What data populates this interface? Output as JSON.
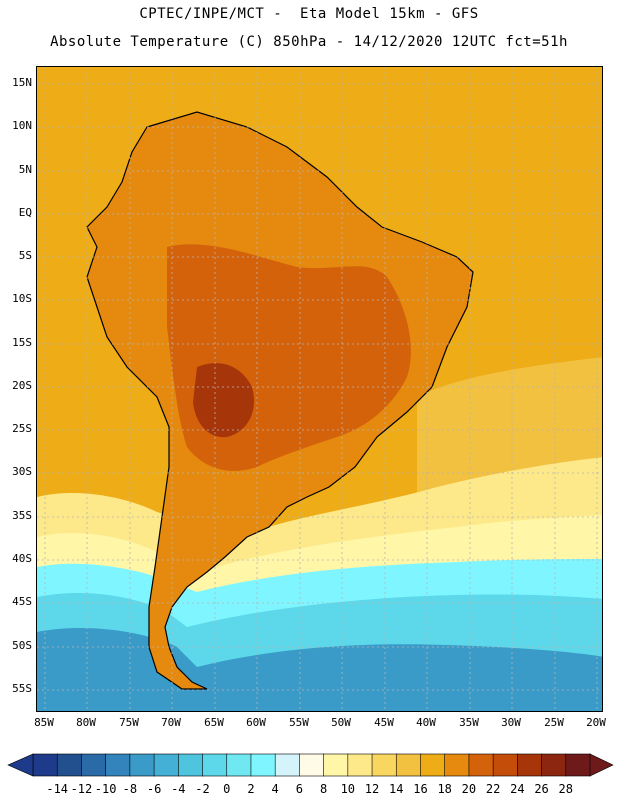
{
  "header": {
    "line1": "CPTEC/INPE/MCT -  Eta Model 15km - GFS",
    "line2": "Absolute Temperature (C) 850hPa - 14/12/2020 12UTC fct=51h"
  },
  "lat_labels": [
    "15N",
    "10N",
    "5N",
    "EQ",
    "5S",
    "10S",
    "15S",
    "20S",
    "25S",
    "30S",
    "35S",
    "40S",
    "45S",
    "50S",
    "55S"
  ],
  "lon_labels": [
    "85W",
    "80W",
    "75W",
    "70W",
    "65W",
    "60W",
    "55W",
    "50W",
    "45W",
    "40W",
    "35W",
    "30W",
    "25W",
    "20W"
  ],
  "colorbar": {
    "labels": [
      "-14",
      "-12",
      "-10",
      "-8",
      "-6",
      "-4",
      "-2",
      "0",
      "2",
      "4",
      "6",
      "8",
      "10",
      "12",
      "14",
      "16",
      "18",
      "20",
      "22",
      "24",
      "26",
      "28"
    ],
    "colors": [
      "#1e3a8a",
      "#22508f",
      "#2a6aa6",
      "#3384bd",
      "#3a9bc8",
      "#44b0d6",
      "#4ec4df",
      "#5cd8ea",
      "#6fe8f2",
      "#7ff6ff",
      "#d4f3fb",
      "#fffbe6",
      "#fff6a8",
      "#fde98a",
      "#f9d65f",
      "#f3c140",
      "#eeac17",
      "#e58a0e",
      "#d4620b",
      "#c44d0a",
      "#a7350a",
      "#8c2611",
      "#6e1a1a"
    ]
  },
  "map": {
    "colors": {
      "ocean_warm": "#eeac17",
      "ocean_mild": "#f3c140",
      "land_hot": "#e58a0e",
      "land_hotter": "#d4620b",
      "land_hottest": "#a7350a",
      "cool_yellow": "#fde98a",
      "pale": "#fff6a8",
      "cyan": "#5cd8ea",
      "light_cyan": "#7ff6ff",
      "blue": "#3a9bc8",
      "coast": "#000000",
      "grid": "#b5b5b5"
    }
  }
}
